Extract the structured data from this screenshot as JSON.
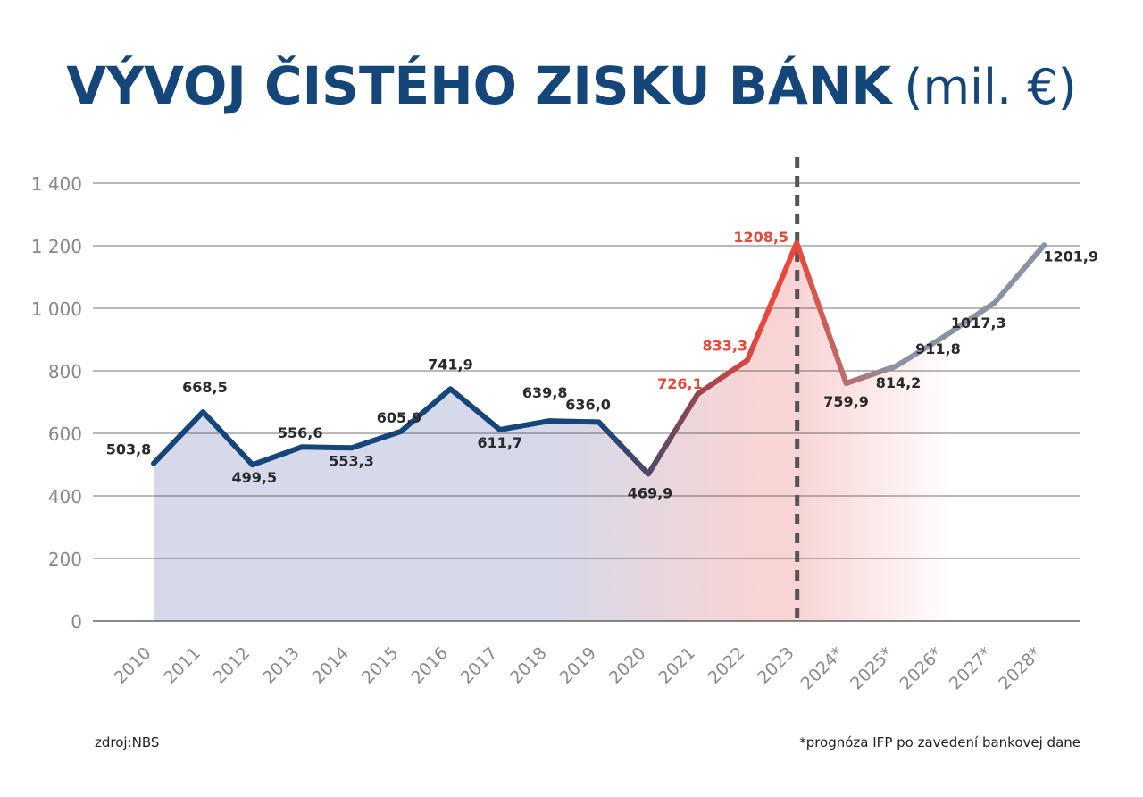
{
  "title": {
    "main": "VÝVOJ ČISTÉHO ZISKU BÁNK",
    "unit": "(mil. €)"
  },
  "source": "zdroj:NBS",
  "footnote": "*prognóza IFP po zavedení bankovej dane",
  "chart_data": {
    "type": "line",
    "categories": [
      "2010",
      "2011",
      "2012",
      "2013",
      "2014",
      "2015",
      "2016",
      "2017",
      "2018",
      "2019",
      "2020",
      "2021",
      "2022",
      "2023",
      "2024*",
      "2025*",
      "2026*",
      "2027*",
      "2028*"
    ],
    "values": [
      503.8,
      668.5,
      499.5,
      556.6,
      553.3,
      605.9,
      741.9,
      611.7,
      639.8,
      636.0,
      469.9,
      726.1,
      833.3,
      1208.5,
      759.9,
      814.2,
      911.8,
      1017.3,
      1201.9
    ],
    "data_labels": [
      "503,8",
      "668,5",
      "499,5",
      "556,6",
      "553,3",
      "605,9",
      "741,9",
      "611,7",
      "639,8",
      "636,0",
      "469,9",
      "726,1",
      "833,3",
      "1208,5",
      "759,9",
      "814,2",
      "911,8",
      "1017,3",
      "1201,9"
    ],
    "y_ticks": [
      0,
      200,
      400,
      600,
      800,
      1000,
      1200,
      1400
    ],
    "y_tick_labels": [
      "0",
      "200",
      "400",
      "600",
      "800",
      "1 000",
      "1 200",
      "1 400"
    ],
    "ylim": [
      0,
      1400
    ],
    "forecast_divider_after": "2023",
    "grid": true,
    "legend": "none",
    "colors": {
      "historic": "#14467a",
      "peak": "#e8483a",
      "forecast": "#8a93a3",
      "area_historic": "#d5d9ea",
      "area_peak": "#f8d4d4",
      "grid": "#444444",
      "divider": "#555555"
    }
  }
}
